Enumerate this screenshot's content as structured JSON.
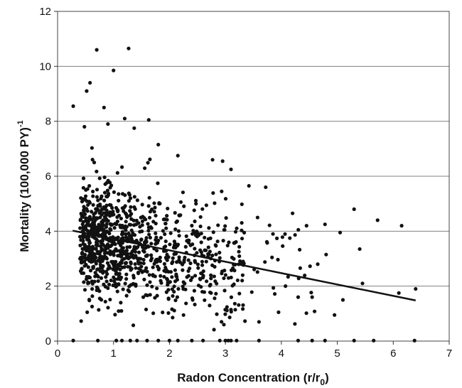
{
  "chart_data": {
    "type": "scatter",
    "title": "",
    "xlabel_main": "Radon Concentration (r/r",
    "xlabel_sub": "0",
    "xlabel_close": ")",
    "ylabel_main": "Mortality (100,000 PY)",
    "ylabel_sup": "-1",
    "xlim": [
      0,
      7
    ],
    "ylim": [
      0,
      12
    ],
    "xticks": [
      0,
      1,
      2,
      3,
      4,
      5,
      6,
      7
    ],
    "yticks": [
      0,
      2,
      4,
      6,
      8,
      10,
      12
    ],
    "grid": "horizontal",
    "legend": "none",
    "colors": {
      "points": "#111111",
      "trendline": "#111111",
      "grid": "#808080",
      "frame": "#444444"
    },
    "trendline": {
      "x": [
        0.27,
        6.4
      ],
      "y": [
        4.02,
        1.48
      ]
    },
    "highlighted_points": [
      {
        "x": 0.28,
        "y": 8.55
      },
      {
        "x": 0.7,
        "y": 10.6
      },
      {
        "x": 1.27,
        "y": 10.65
      },
      {
        "x": 1.0,
        "y": 9.85
      },
      {
        "x": 0.58,
        "y": 9.4
      },
      {
        "x": 0.52,
        "y": 9.1
      },
      {
        "x": 0.83,
        "y": 8.5
      },
      {
        "x": 1.2,
        "y": 8.1
      },
      {
        "x": 1.63,
        "y": 8.05
      },
      {
        "x": 1.37,
        "y": 7.75
      },
      {
        "x": 0.48,
        "y": 7.8
      },
      {
        "x": 0.9,
        "y": 7.9
      },
      {
        "x": 6.15,
        "y": 4.2
      },
      {
        "x": 6.4,
        "y": 1.9
      },
      {
        "x": 5.72,
        "y": 4.4
      },
      {
        "x": 5.3,
        "y": 4.8
      },
      {
        "x": 6.1,
        "y": 1.75
      },
      {
        "x": 5.4,
        "y": 3.35
      },
      {
        "x": 5.45,
        "y": 2.1
      },
      {
        "x": 5.1,
        "y": 1.5
      },
      {
        "x": 4.95,
        "y": 0.95
      },
      {
        "x": 4.45,
        "y": 4.2
      },
      {
        "x": 4.78,
        "y": 4.25
      },
      {
        "x": 5.05,
        "y": 3.95
      },
      {
        "x": 4.2,
        "y": 4.65
      },
      {
        "x": 3.85,
        "y": 3.9
      },
      {
        "x": 3.72,
        "y": 5.6
      },
      {
        "x": 3.42,
        "y": 5.65
      },
      {
        "x": 3.1,
        "y": 6.25
      },
      {
        "x": 2.77,
        "y": 6.6
      },
      {
        "x": 2.95,
        "y": 6.55
      },
      {
        "x": 1.8,
        "y": 7.15
      },
      {
        "x": 2.15,
        "y": 6.75
      },
      {
        "x": 4.65,
        "y": 2.8
      },
      {
        "x": 4.8,
        "y": 3.15
      },
      {
        "x": 4.3,
        "y": 1.6
      },
      {
        "x": 4.55,
        "y": 1.6
      },
      {
        "x": 3.95,
        "y": 1.05
      },
      {
        "x": 3.6,
        "y": 0.7
      }
    ],
    "zero_points_x": [
      0.28,
      0.72,
      1.05,
      1.15,
      1.3,
      1.42,
      1.6,
      1.8,
      2.0,
      2.15,
      2.4,
      2.6,
      2.9,
      3.0,
      3.05,
      3.1,
      3.2,
      3.6,
      4.3,
      4.55,
      4.78,
      5.3,
      5.65,
      6.38
    ],
    "cluster_note_excluded": true,
    "generator_seed": 12345
  }
}
